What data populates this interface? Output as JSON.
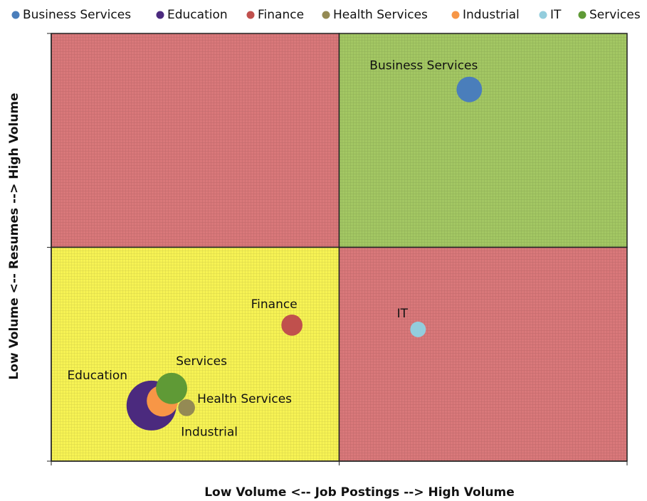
{
  "chart_data": {
    "type": "bubble",
    "x_label": "Low Volume <-- Job Postings --> High Volume",
    "y_label": "Low Volume <-- Resumes --> High Volume",
    "xlim": [
      0,
      10
    ],
    "ylim": [
      0,
      10
    ],
    "xticks": [
      0,
      5,
      10
    ],
    "yticks": [
      0,
      5,
      10
    ],
    "legend": "top",
    "series": [
      {
        "name": "Business Services",
        "color": "#4a7ebb",
        "x": [
          7.26
        ],
        "values": [
          8.69
        ],
        "sizes": [
          32
        ]
      },
      {
        "name": "Education",
        "color": "#4b2a7e",
        "x": [
          1.74
        ],
        "values": [
          1.3
        ],
        "sizes": [
          122
        ]
      },
      {
        "name": "Finance",
        "color": "#c0504d",
        "x": [
          4.18
        ],
        "values": [
          3.18
        ],
        "sizes": [
          22
        ]
      },
      {
        "name": "Health Services",
        "color": "#948a54",
        "x": [
          2.35
        ],
        "values": [
          1.25
        ],
        "sizes": [
          14
        ]
      },
      {
        "name": "Industrial",
        "color": "#f79646",
        "x": [
          1.93
        ],
        "values": [
          1.41
        ],
        "sizes": [
          48
        ]
      },
      {
        "name": "IT",
        "color": "#93cddd",
        "x": [
          6.37
        ],
        "values": [
          3.08
        ],
        "sizes": [
          12
        ]
      },
      {
        "name": "Services",
        "color": "#5f9a36",
        "x": [
          2.09
        ],
        "values": [
          1.7
        ],
        "sizes": [
          48
        ]
      }
    ]
  }
}
